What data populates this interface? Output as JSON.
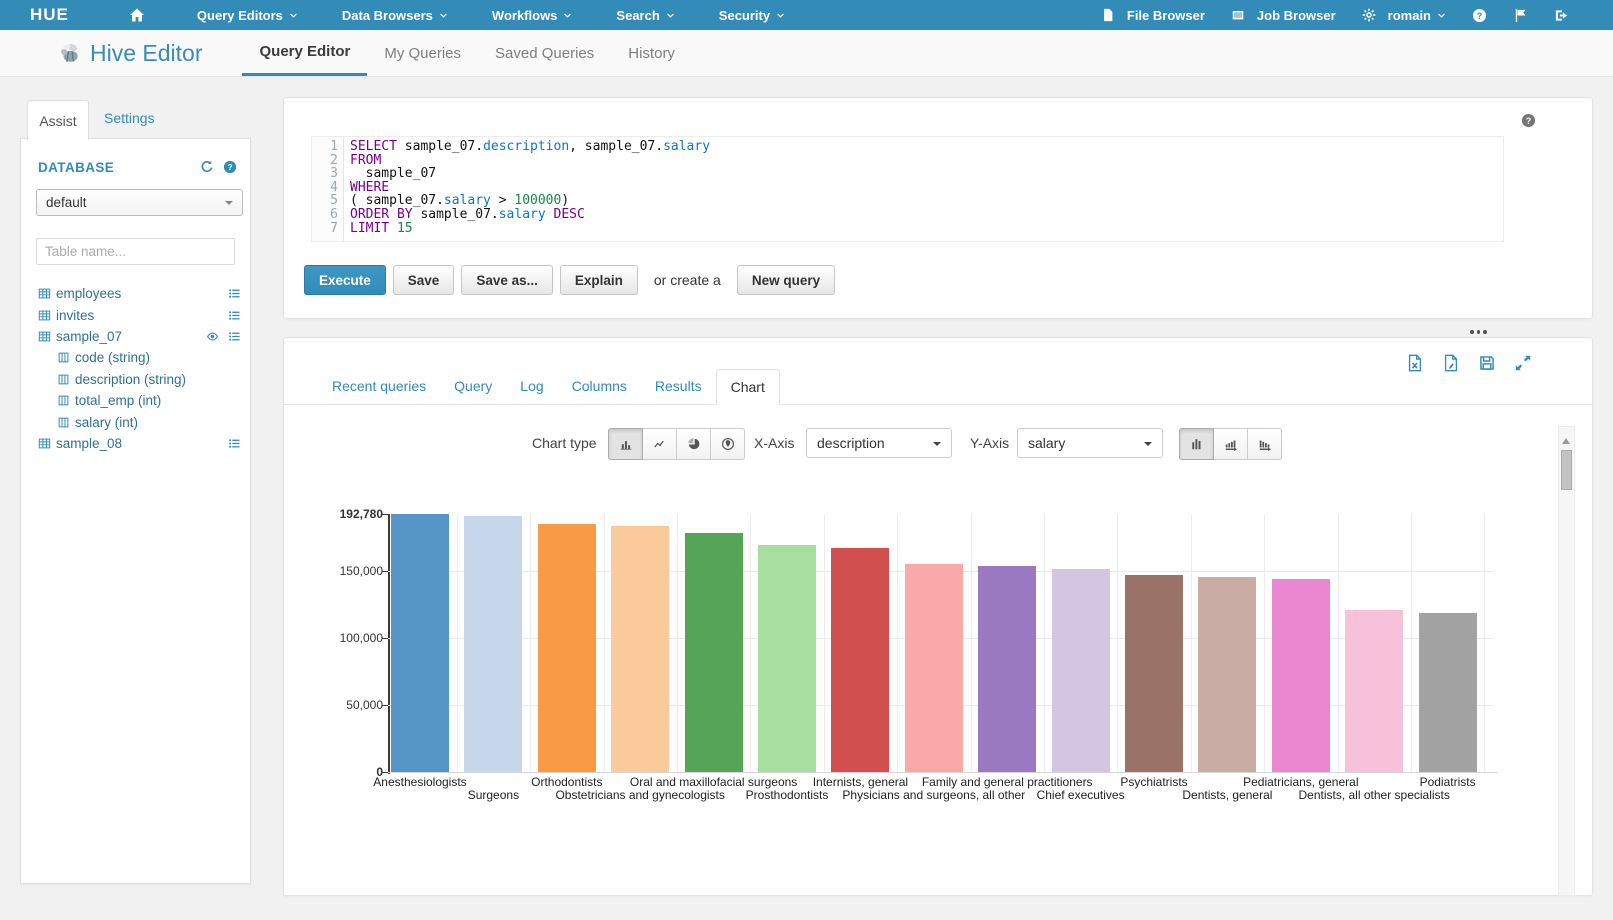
{
  "navbar": {
    "logo": "HUE",
    "menus": [
      "Query Editors",
      "Data Browsers",
      "Workflows",
      "Search",
      "Security"
    ],
    "file_browser": "File Browser",
    "job_browser": "Job Browser",
    "user": "romain",
    "right_icons": [
      "help",
      "flag",
      "logout"
    ]
  },
  "header": {
    "app_title": "Hive Editor",
    "tabs": [
      {
        "label": "Query Editor",
        "active": true
      },
      {
        "label": "My Queries",
        "active": false
      },
      {
        "label": "Saved Queries",
        "active": false
      },
      {
        "label": "History",
        "active": false
      }
    ]
  },
  "sidebar": {
    "assist_tab": "Assist",
    "settings_tab": "Settings",
    "database_label": "DATABASE",
    "database_value": "default",
    "table_filter_placeholder": "Table name...",
    "tables": [
      {
        "name": "employees",
        "eye": false,
        "columns": []
      },
      {
        "name": "invites",
        "eye": false,
        "columns": []
      },
      {
        "name": "sample_07",
        "eye": true,
        "columns": [
          "code (string)",
          "description (string)",
          "total_emp (int)",
          "salary (int)"
        ]
      },
      {
        "name": "sample_08",
        "eye": false,
        "columns": []
      }
    ]
  },
  "editor": {
    "code_lines": [
      [
        [
          "kw",
          "SELECT"
        ],
        [
          "pl",
          " sample_07."
        ],
        [
          "prop",
          "description"
        ],
        [
          "pl",
          ", sample_07."
        ],
        [
          "prop",
          "salary"
        ]
      ],
      [
        [
          "kw",
          "FROM"
        ]
      ],
      [
        [
          "pl",
          "  sample_07"
        ]
      ],
      [
        [
          "kw",
          "WHERE"
        ]
      ],
      [
        [
          "pl",
          "( sample_07."
        ],
        [
          "prop",
          "salary"
        ],
        [
          "pl",
          " > "
        ],
        [
          "num",
          "100000"
        ],
        [
          "pl",
          ")"
        ]
      ],
      [
        [
          "kw",
          "ORDER BY"
        ],
        [
          "pl",
          " sample_07."
        ],
        [
          "prop",
          "salary"
        ],
        [
          "kw",
          " DESC"
        ]
      ],
      [
        [
          "kw",
          "LIMIT"
        ],
        [
          "num",
          " 15"
        ]
      ]
    ],
    "buttons": {
      "execute": "Execute",
      "save": "Save",
      "save_as": "Save as...",
      "explain": "Explain",
      "or_create": "or create a",
      "new_query": "New query"
    }
  },
  "results": {
    "tabs": [
      {
        "label": "Recent queries",
        "active": false
      },
      {
        "label": "Query",
        "active": false
      },
      {
        "label": "Log",
        "active": false
      },
      {
        "label": "Columns",
        "active": false
      },
      {
        "label": "Results",
        "active": false
      },
      {
        "label": "Chart",
        "active": true
      }
    ],
    "toolbar_icons": [
      "download-excel",
      "download-csv",
      "save-result",
      "expand"
    ]
  },
  "chart_controls": {
    "chart_type_label": "Chart type",
    "type_buttons": [
      {
        "icon": "chart-bar",
        "active": true
      },
      {
        "icon": "chart-line",
        "active": false
      },
      {
        "icon": "chart-pie",
        "active": false
      },
      {
        "icon": "chart-map",
        "active": false
      }
    ],
    "x_axis_label": "X-Axis",
    "x_axis_value": "description",
    "y_axis_label": "Y-Axis",
    "y_axis_value": "salary",
    "sort_buttons": [
      {
        "icon": "sort-none",
        "active": true
      },
      {
        "icon": "sort-asc",
        "active": false
      },
      {
        "icon": "sort-desc",
        "active": false
      }
    ]
  },
  "chart_data": {
    "type": "bar",
    "title": "",
    "xlabel": "description",
    "ylabel": "salary",
    "ylim": [
      0,
      192780
    ],
    "grid": true,
    "legend": "none",
    "yticks": [
      {
        "value": 0,
        "label": "0",
        "bold": true
      },
      {
        "value": 50000,
        "label": "50,000",
        "bold": false
      },
      {
        "value": 100000,
        "label": "100,000",
        "bold": false
      },
      {
        "value": 150000,
        "label": "150,000",
        "bold": false
      },
      {
        "value": 192780,
        "label": "192,780",
        "bold": true
      }
    ],
    "categories": [
      "Anesthesiologists",
      "Surgeons",
      "Orthodontists",
      "Obstetricians and gynecologists",
      "Oral and maxillofacial surgeons",
      "Prosthodontists",
      "Internists, general",
      "Physicians and surgeons, all other",
      "Family and general practitioners",
      "Chief executives",
      "Psychiatrists",
      "Dentists, general",
      "Pediatricians, general",
      "Dentists, all other specialists",
      "Podiatrists"
    ],
    "values": [
      192780,
      191410,
      185340,
      183600,
      178440,
      169810,
      167270,
      155150,
      153640,
      151370,
      147010,
      146040,
      144210,
      121130,
      118500
    ],
    "bar_colors": [
      "#5596c7",
      "#c6d7ec",
      "#f99b45",
      "#fbca9b",
      "#56a556",
      "#a7df9f",
      "#d14f4d",
      "#f9a9a7",
      "#9a79c0",
      "#d4c5e2",
      "#9b7267",
      "#c9aca3",
      "#e987d0",
      "#f7c1d9",
      "#a2a2a2"
    ],
    "xlabel_rows": [
      1,
      2,
      1,
      2,
      1,
      2,
      1,
      2,
      1,
      2,
      1,
      2,
      1,
      2,
      1
    ]
  }
}
